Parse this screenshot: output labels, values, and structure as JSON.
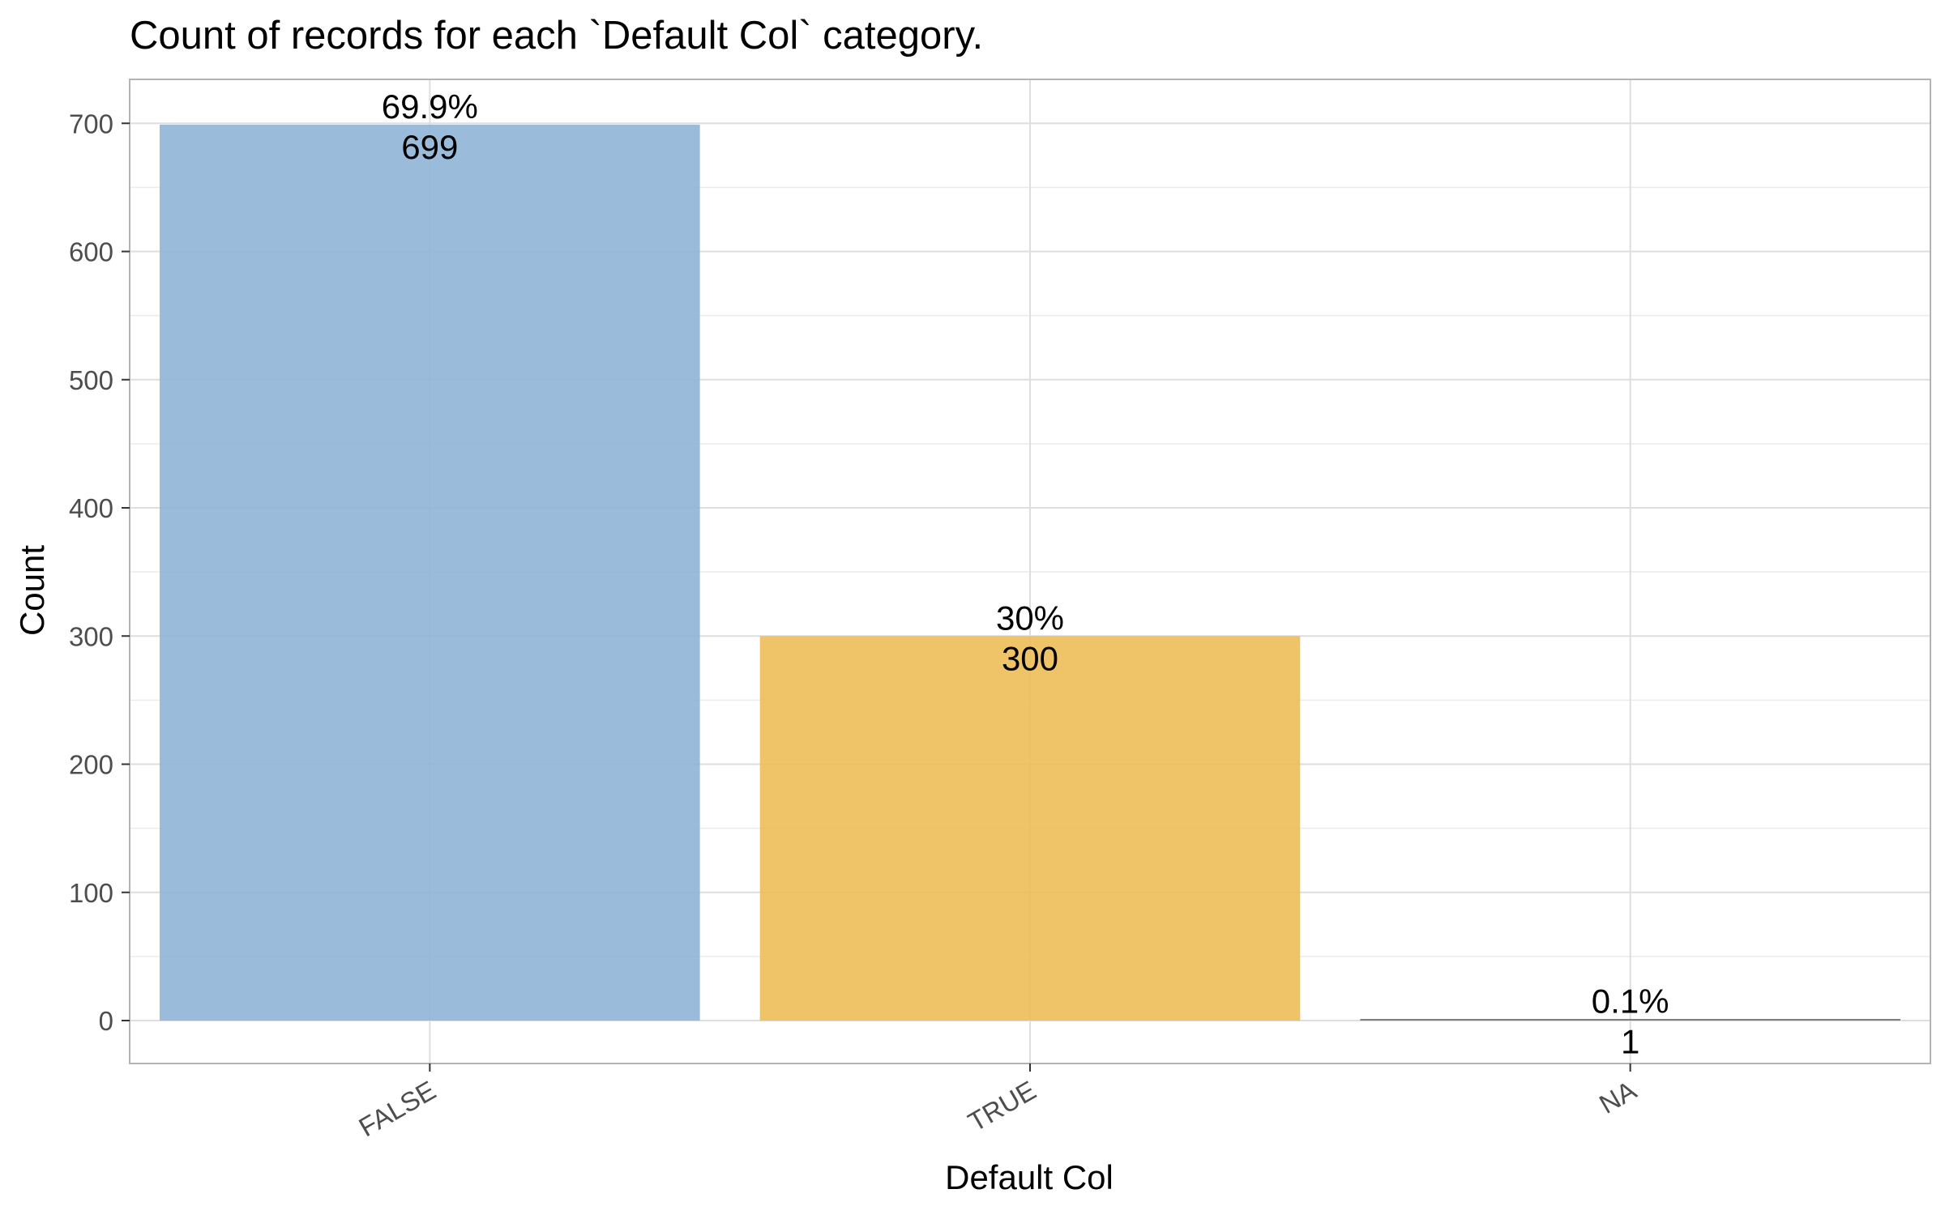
{
  "chart_data": {
    "type": "bar",
    "title": "Count of records for each `Default Col` category.",
    "xlabel": "Default Col",
    "ylabel": "Count",
    "categories": [
      "FALSE",
      "TRUE",
      "NA"
    ],
    "values": [
      699,
      300,
      1
    ],
    "percent_labels": [
      "69.9%",
      "30%",
      "0.1%"
    ],
    "count_labels": [
      "699",
      "300",
      "1"
    ],
    "bar_colors": [
      "#8fb5d6",
      "#edbd58",
      "#7f7f7f"
    ],
    "ylim": [
      0,
      733
    ],
    "y_ticks": [
      0,
      100,
      200,
      300,
      400,
      500,
      600,
      700
    ],
    "y_tick_labels": [
      "0",
      "100",
      "200",
      "300",
      "400",
      "500",
      "600",
      "700"
    ],
    "grid": true,
    "legend": false
  }
}
